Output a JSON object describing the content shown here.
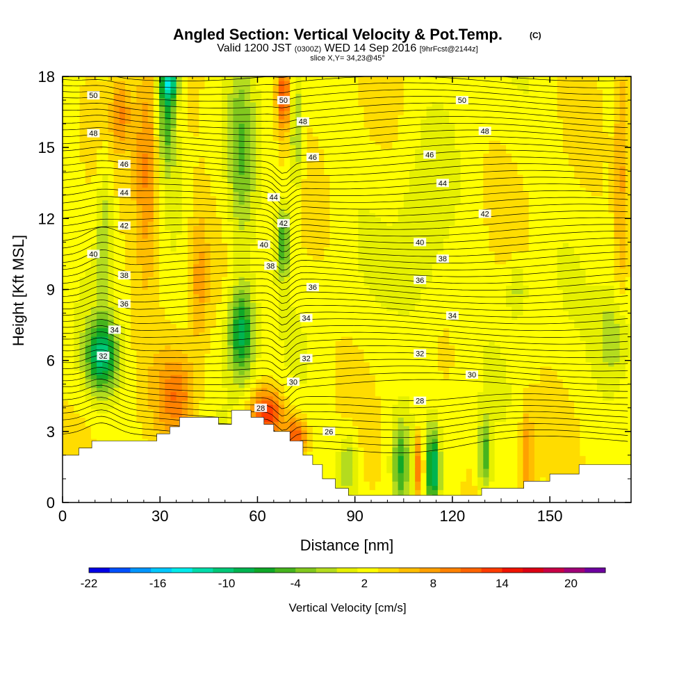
{
  "header": {
    "title": "Angled Section: Vertical Velocity & Pot.Temp.",
    "title_suffix": "(C)",
    "valid_prefix": "Valid 1200 JST",
    "valid_utc": "(0300Z)",
    "valid_date": "WED 14 Sep 2016",
    "valid_fcst": "[9hrFcst@2144z]",
    "slice": "slice X,Y= 34,23@45°"
  },
  "chart_data": {
    "type": "heatmap",
    "title": "Angled Section: Vertical Velocity & Pot.Temp. (C)",
    "xlabel": "Distance [nm]",
    "ylabel": "Height [Kft MSL]",
    "xlim": [
      0,
      175
    ],
    "ylim": [
      0,
      18
    ],
    "x_ticks": [
      "0",
      "30",
      "60",
      "90",
      "120",
      "150"
    ],
    "x_tick_values": [
      0,
      30,
      60,
      90,
      120,
      150
    ],
    "y_ticks": [
      "0",
      "3",
      "6",
      "9",
      "12",
      "15",
      "18"
    ],
    "y_tick_values": [
      0,
      3,
      6,
      9,
      12,
      15,
      18
    ],
    "colorbar": {
      "label": "Vertical Velocity [cm/s]",
      "tick_labels": [
        "-22",
        "-16",
        "-10",
        "-4",
        "2",
        "8",
        "14",
        "20"
      ],
      "tick_values": [
        -22,
        -16,
        -10,
        -4,
        2,
        8,
        14,
        20
      ],
      "min": -22,
      "max": 23,
      "colors": [
        "#0000e6",
        "#0050ff",
        "#0096ff",
        "#00c8ff",
        "#00ebeb",
        "#00dcaa",
        "#00c878",
        "#00b450",
        "#10a828",
        "#46b41e",
        "#82c81e",
        "#b4dc1e",
        "#e6f000",
        "#ffff00",
        "#ffdc00",
        "#ffbe00",
        "#ffa000",
        "#ff8200",
        "#ff6400",
        "#ff3c00",
        "#f01400",
        "#dc0014",
        "#c80046",
        "#a00078",
        "#6e00a0"
      ]
    },
    "terrain": [
      [
        0,
        2.0
      ],
      [
        5,
        2.0
      ],
      [
        5,
        2.3
      ],
      [
        9,
        2.3
      ],
      [
        9,
        2.6
      ],
      [
        23,
        2.6
      ],
      [
        23,
        2.6
      ],
      [
        29,
        2.6
      ],
      [
        29,
        2.9
      ],
      [
        33,
        2.9
      ],
      [
        33,
        3.2
      ],
      [
        36,
        3.2
      ],
      [
        36,
        3.6
      ],
      [
        48,
        3.6
      ],
      [
        48,
        3.3
      ],
      [
        52,
        3.3
      ],
      [
        52,
        3.9
      ],
      [
        58,
        3.9
      ],
      [
        58,
        3.6
      ],
      [
        62,
        3.6
      ],
      [
        62,
        3.3
      ],
      [
        65,
        3.3
      ],
      [
        65,
        3.0
      ],
      [
        70,
        3.0
      ],
      [
        70,
        2.6
      ],
      [
        74,
        2.6
      ],
      [
        74,
        2.0
      ],
      [
        77,
        2.0
      ],
      [
        77,
        1.6
      ],
      [
        80,
        1.6
      ],
      [
        80,
        1.0
      ],
      [
        84,
        1.0
      ],
      [
        84,
        0.6
      ],
      [
        88,
        0.6
      ],
      [
        88,
        0.3
      ],
      [
        129,
        0.3
      ],
      [
        129,
        0.6
      ],
      [
        142,
        0.6
      ],
      [
        142,
        0.9
      ],
      [
        150,
        0.9
      ],
      [
        150,
        1.2
      ],
      [
        159,
        1.2
      ],
      [
        159,
        1.6
      ],
      [
        175,
        1.6
      ]
    ],
    "velocity_features": [
      {
        "x": 12,
        "y": 6.2,
        "rx": 5,
        "ry": 1.5,
        "w": -12
      },
      {
        "x": 13,
        "y": 11.5,
        "rx": 2.5,
        "ry": 3,
        "w": -5
      },
      {
        "x": 32,
        "y": 16.5,
        "rx": 3,
        "ry": 2.5,
        "w": -9
      },
      {
        "x": 33,
        "y": 17.8,
        "rx": 3,
        "ry": 0.8,
        "w": -11
      },
      {
        "x": 55,
        "y": 7.2,
        "rx": 4,
        "ry": 2,
        "w": -12
      },
      {
        "x": 55,
        "y": 14.5,
        "rx": 4,
        "ry": 4,
        "w": -6
      },
      {
        "x": 68,
        "y": 11.0,
        "rx": 2,
        "ry": 1.5,
        "w": -9
      },
      {
        "x": 72,
        "y": 15.5,
        "rx": 2,
        "ry": 2.5,
        "w": -6
      },
      {
        "x": 114,
        "y": 1.5,
        "rx": 2,
        "ry": 1.6,
        "w": -12
      },
      {
        "x": 104,
        "y": 1.6,
        "rx": 2.5,
        "ry": 1.8,
        "w": -8
      },
      {
        "x": 130,
        "y": 2.0,
        "rx": 2,
        "ry": 1.6,
        "w": -8
      },
      {
        "x": 88,
        "y": 1.6,
        "rx": 3,
        "ry": 1.4,
        "w": -5
      },
      {
        "x": 170,
        "y": 7.0,
        "rx": 6,
        "ry": 2.2,
        "w": -5
      },
      {
        "x": 140,
        "y": 9.0,
        "rx": 3,
        "ry": 1.2,
        "w": -4
      },
      {
        "x": 110,
        "y": 10.5,
        "rx": 8,
        "ry": 4,
        "w": -3
      },
      {
        "x": 35,
        "y": 4.5,
        "rx": 6,
        "ry": 1.8,
        "w": 7
      },
      {
        "x": 26,
        "y": 14.0,
        "rx": 4,
        "ry": 4.5,
        "w": 7
      },
      {
        "x": 63,
        "y": 3.8,
        "rx": 5,
        "ry": 1,
        "w": 11
      },
      {
        "x": 68,
        "y": 17.2,
        "rx": 2,
        "ry": 1.5,
        "w": 10
      },
      {
        "x": 72,
        "y": 2.8,
        "rx": 3,
        "ry": 0.8,
        "w": 10
      },
      {
        "x": 110,
        "y": 1.5,
        "rx": 1,
        "ry": 1.4,
        "w": 13
      },
      {
        "x": 143,
        "y": 2.0,
        "rx": 2,
        "ry": 2,
        "w": 6
      },
      {
        "x": 18,
        "y": 16.5,
        "rx": 3,
        "ry": 1.5,
        "w": 6
      },
      {
        "x": 42,
        "y": 9.5,
        "rx": 3,
        "ry": 3,
        "w": 5
      },
      {
        "x": 172,
        "y": 14.0,
        "rx": 2,
        "ry": 5,
        "w": 5
      }
    ],
    "theta_levels": [
      26,
      28,
      30,
      32,
      34,
      36,
      38,
      40,
      42,
      44,
      46,
      48,
      50
    ],
    "contour_labels": [
      {
        "text": "50",
        "x": 9.5,
        "y": 17.2
      },
      {
        "text": "50",
        "x": 68,
        "y": 17.0
      },
      {
        "text": "50",
        "x": 123,
        "y": 17.0
      },
      {
        "text": "48",
        "x": 9.5,
        "y": 15.6
      },
      {
        "text": "48",
        "x": 74,
        "y": 16.1
      },
      {
        "text": "48",
        "x": 130,
        "y": 15.7
      },
      {
        "text": "46",
        "x": 19,
        "y": 14.3
      },
      {
        "text": "46",
        "x": 77,
        "y": 14.6
      },
      {
        "text": "46",
        "x": 113,
        "y": 14.7
      },
      {
        "text": "44",
        "x": 19,
        "y": 13.1
      },
      {
        "text": "44",
        "x": 65,
        "y": 12.9
      },
      {
        "text": "44",
        "x": 117,
        "y": 13.5
      },
      {
        "text": "42",
        "x": 19,
        "y": 11.7
      },
      {
        "text": "42",
        "x": 68,
        "y": 11.8
      },
      {
        "text": "42",
        "x": 130,
        "y": 12.2
      },
      {
        "text": "40",
        "x": 9.5,
        "y": 10.5
      },
      {
        "text": "40",
        "x": 62,
        "y": 10.9
      },
      {
        "text": "40",
        "x": 110,
        "y": 11.0
      },
      {
        "text": "38",
        "x": 19,
        "y": 9.6
      },
      {
        "text": "38",
        "x": 64,
        "y": 10.0
      },
      {
        "text": "38",
        "x": 117,
        "y": 10.3
      },
      {
        "text": "36",
        "x": 19,
        "y": 8.4
      },
      {
        "text": "36",
        "x": 77,
        "y": 9.1
      },
      {
        "text": "36",
        "x": 110,
        "y": 9.4
      },
      {
        "text": "34",
        "x": 16,
        "y": 7.3
      },
      {
        "text": "34",
        "x": 75,
        "y": 7.8
      },
      {
        "text": "34",
        "x": 120,
        "y": 7.9
      },
      {
        "text": "32",
        "x": 12.5,
        "y": 6.2
      },
      {
        "text": "32",
        "x": 75,
        "y": 6.1
      },
      {
        "text": "32",
        "x": 110,
        "y": 6.3
      },
      {
        "text": "30",
        "x": 71,
        "y": 5.1
      },
      {
        "text": "30",
        "x": 126,
        "y": 5.4
      },
      {
        "text": "28",
        "x": 61,
        "y": 4.0
      },
      {
        "text": "28",
        "x": 110,
        "y": 4.3
      },
      {
        "text": "26",
        "x": 82,
        "y": 3.0
      }
    ]
  }
}
